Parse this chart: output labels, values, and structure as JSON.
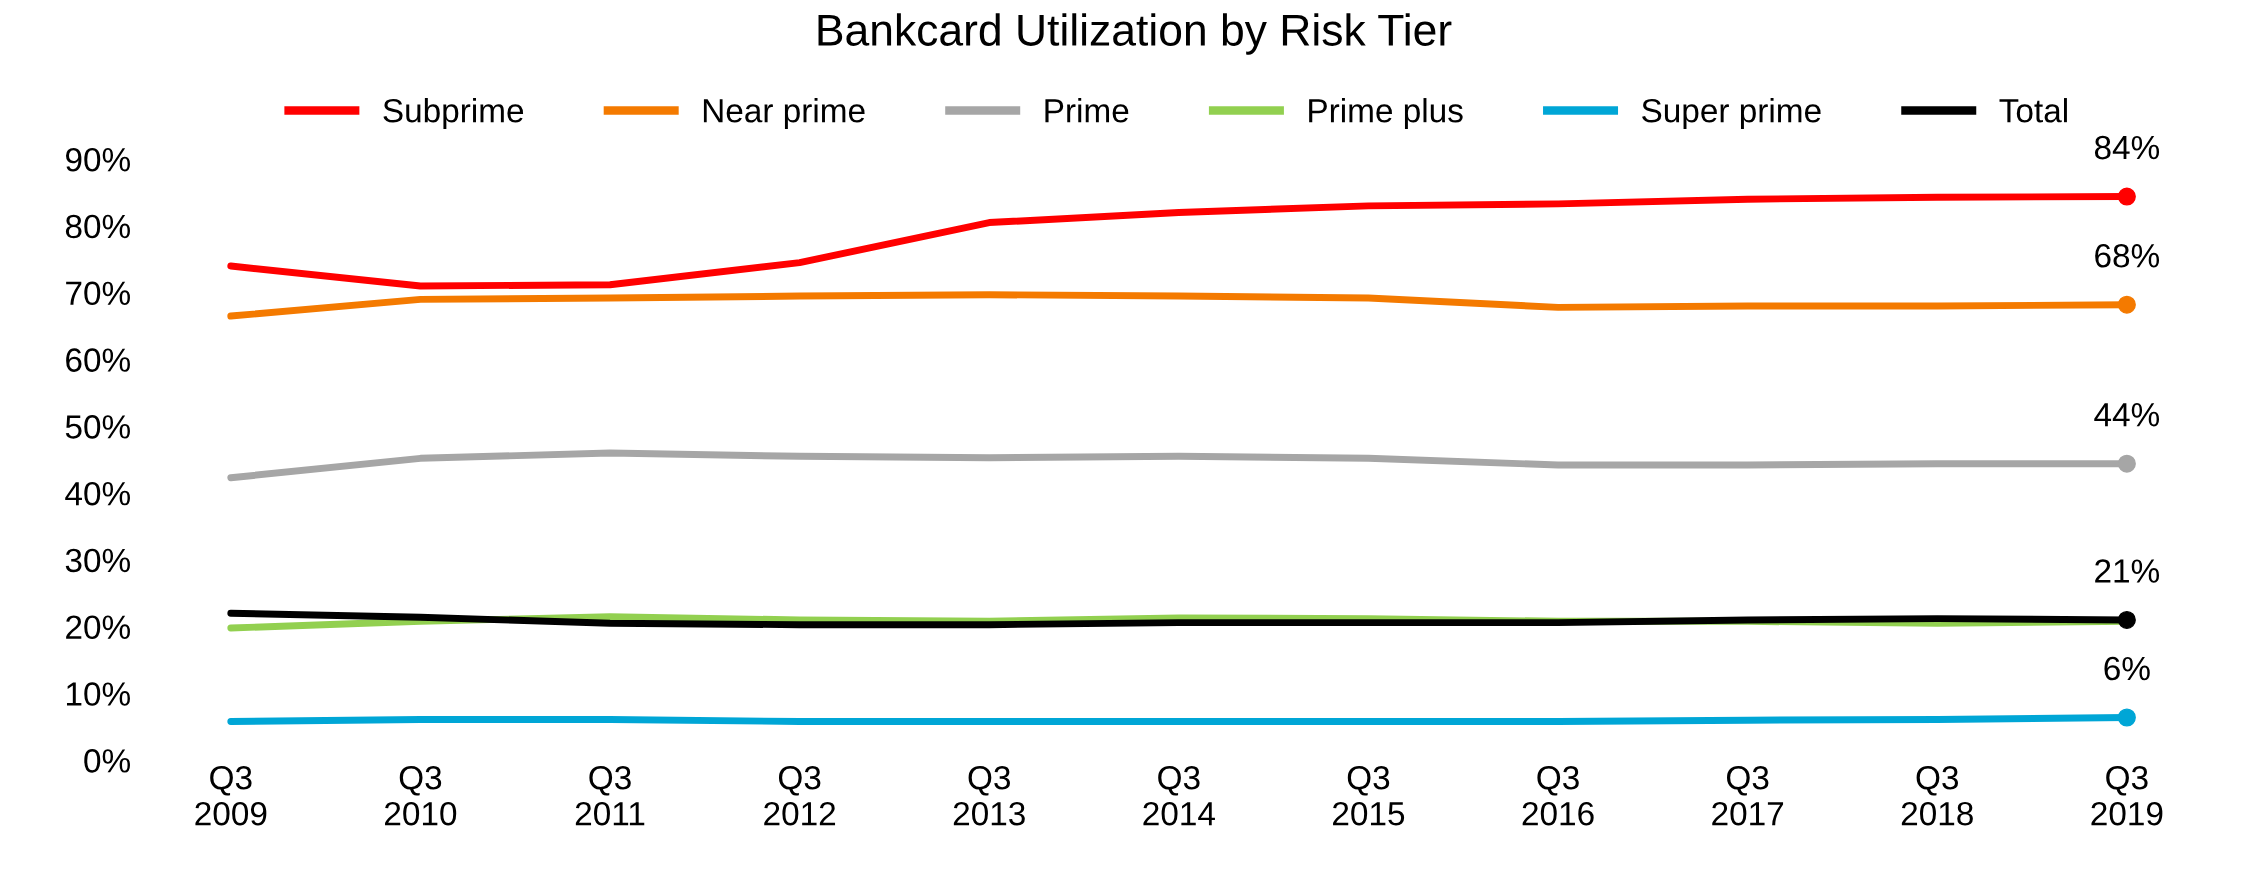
{
  "chart_data": {
    "type": "line",
    "title": "Bankcard Utilization by Risk Tier",
    "categories": [
      "Q3\n2009",
      "Q3\n2010",
      "Q3\n2011",
      "Q3\n2012",
      "Q3\n2013",
      "Q3\n2014",
      "Q3\n2015",
      "Q3\n2016",
      "Q3\n2017",
      "Q3\n2018",
      "Q3\n2019"
    ],
    "series": [
      {
        "name": "Subprime",
        "color": "#ff0000",
        "values": [
          74,
          71,
          71.2,
          74.5,
          80.5,
          82,
          83,
          83.3,
          84,
          84.3,
          84.4
        ],
        "value_labels": [
          null,
          null,
          null,
          null,
          null,
          null,
          null,
          null,
          null,
          null,
          "84%"
        ]
      },
      {
        "name": "Near prime",
        "color": "#f47a00",
        "values": [
          66.5,
          69,
          69.2,
          69.5,
          69.7,
          69.5,
          69.2,
          67.8,
          68,
          68,
          68.2
        ],
        "value_labels": [
          null,
          null,
          null,
          null,
          null,
          null,
          null,
          null,
          null,
          null,
          "68%"
        ]
      },
      {
        "name": "Prime",
        "color": "#a6a6a6",
        "values": [
          42.3,
          45.2,
          46,
          45.5,
          45.3,
          45.5,
          45.2,
          44.2,
          44.2,
          44.4,
          44.4
        ],
        "value_labels": [
          null,
          null,
          null,
          null,
          null,
          null,
          null,
          null,
          null,
          null,
          "44%"
        ]
      },
      {
        "name": "Prime plus",
        "color": "#92d050",
        "values": [
          19.8,
          20.8,
          21.5,
          21,
          20.8,
          21.3,
          21.2,
          20.8,
          20.8,
          20.5,
          20.8
        ]
      },
      {
        "name": "Super prime",
        "color": "#00a6d6",
        "values": [
          5.8,
          6.1,
          6.1,
          5.8,
          5.8,
          5.8,
          5.8,
          5.8,
          6,
          6.1,
          6.4
        ],
        "value_labels": [
          null,
          null,
          null,
          null,
          null,
          null,
          null,
          null,
          null,
          null,
          "6%"
        ]
      },
      {
        "name": "Total",
        "color": "#000000",
        "values": [
          22,
          21.4,
          20.5,
          20.3,
          20.3,
          20.6,
          20.6,
          20.6,
          21,
          21.2,
          21
        ],
        "value_labels": [
          null,
          null,
          null,
          null,
          null,
          null,
          null,
          null,
          null,
          null,
          "21%"
        ]
      }
    ],
    "ylim": [
      0,
      90
    ],
    "yticks": [
      {
        "value": 0,
        "label": "0%"
      },
      {
        "value": 10,
        "label": "10%"
      },
      {
        "value": 20,
        "label": "20%"
      },
      {
        "value": 30,
        "label": "30%"
      },
      {
        "value": 40,
        "label": "40%"
      },
      {
        "value": 50,
        "label": "50%"
      },
      {
        "value": 60,
        "label": "60%"
      },
      {
        "value": 70,
        "label": "70%"
      },
      {
        "value": 80,
        "label": "80%"
      },
      {
        "value": 90,
        "label": "90%"
      }
    ],
    "grid": false,
    "legend": "top",
    "line_style": "solid"
  }
}
